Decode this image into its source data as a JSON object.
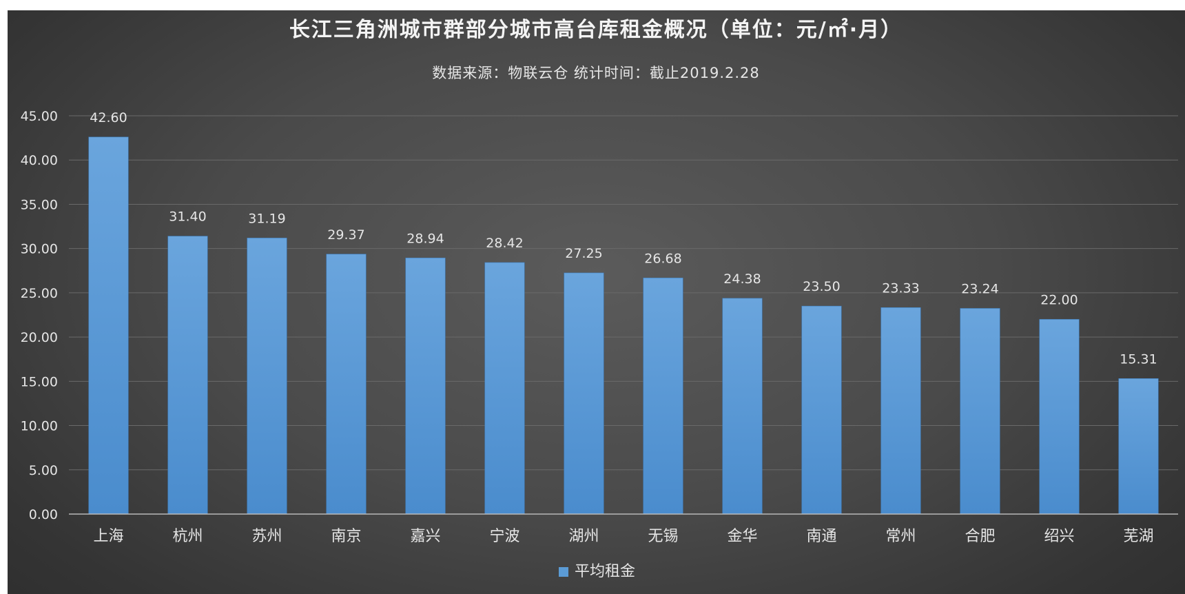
{
  "chart_data": {
    "type": "bar",
    "title": "长江三角洲城市群部分城市高台库租金概况（单位：元/㎡·月）",
    "subtitle": "数据来源：物联云仓 统计时间：截止2019.2.28",
    "categories": [
      "上海",
      "杭州",
      "苏州",
      "南京",
      "嘉兴",
      "宁波",
      "湖州",
      "无锡",
      "金华",
      "南通",
      "常州",
      "合肥",
      "绍兴",
      "芜湖"
    ],
    "series": [
      {
        "name": "平均租金",
        "values": [
          42.6,
          31.4,
          31.19,
          29.37,
          28.94,
          28.42,
          27.25,
          26.68,
          24.38,
          23.5,
          23.33,
          23.24,
          22.0,
          15.31
        ],
        "color": "#5b9bd5"
      }
    ],
    "ylim": [
      0,
      45
    ],
    "ytick_step": 5,
    "value_decimals": 2,
    "grid": true,
    "legend_position": "bottom"
  }
}
